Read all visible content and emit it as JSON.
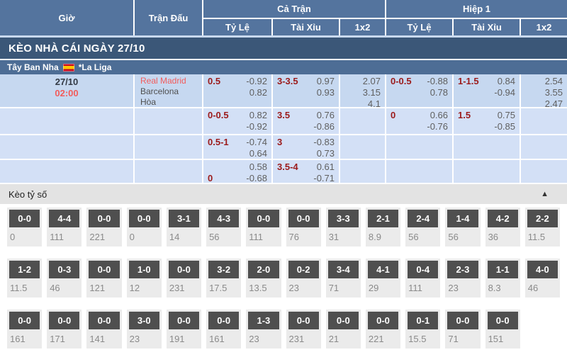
{
  "header": {
    "time": "Giờ",
    "match": "Trận Đấu",
    "full": "Cả Trận",
    "half": "Hiệp 1",
    "odds": "Tỷ Lệ",
    "ou": "Tài Xỉu",
    "oneXtwo": "1x2"
  },
  "banner": {
    "title": "KÈO NHÀ CÁI NGÀY 27/10"
  },
  "league": {
    "country": "Tây Ban Nha",
    "name": "*La Liga",
    "flag": "spain-flag"
  },
  "match": {
    "date": "27/10",
    "time": "02:00",
    "home": "Real Madrid",
    "away": "Barcelona",
    "draw": "Hòa"
  },
  "odds": {
    "r1": {
      "ft_hdp": {
        "label": "0.5",
        "v1": "-0.92",
        "v2": "0.82"
      },
      "ft_ou": {
        "label": "3-3.5",
        "v1": "0.97",
        "v2": "0.93"
      },
      "ft_1x2": {
        "v1": "2.07",
        "v2": "3.15",
        "v3": "4.1"
      },
      "h1_hdp": {
        "label": "0-0.5",
        "v1": "-0.88",
        "v2": "0.78"
      },
      "h1_ou": {
        "label": "1-1.5",
        "v1": "0.84",
        "v2": "-0.94"
      },
      "h1_1x2": {
        "v1": "2.54",
        "v2": "3.55",
        "v3": "2.47"
      }
    },
    "r2": {
      "ft_hdp": {
        "label": "0-0.5",
        "v1": "0.82",
        "v2": "-0.92"
      },
      "ft_ou": {
        "label": "3.5",
        "v1": "0.76",
        "v2": "-0.86"
      },
      "h1_hdp": {
        "label": "0",
        "v1": "0.66",
        "v2": "-0.76"
      },
      "h1_ou": {
        "label": "1.5",
        "v1": "0.75",
        "v2": "-0.85"
      }
    },
    "r3": {
      "ft_hdp": {
        "label": "0.5-1",
        "v1": "-0.74",
        "v2": "0.64"
      },
      "ft_ou": {
        "label": "3",
        "v1": "-0.83",
        "v2": "0.73"
      }
    },
    "r4": {
      "ft_hdp": {
        "label2": "0",
        "v1": "0.58",
        "v2": "-0.68"
      },
      "ft_ou": {
        "label": "3.5-4",
        "v1": "0.61",
        "v2": "-0.71"
      }
    }
  },
  "score_section": {
    "title": "Kèo tỷ số",
    "collapse": "▲"
  },
  "scores": {
    "r1": [
      {
        "s": "0-0",
        "v": "0"
      },
      {
        "s": "4-4",
        "v": "111"
      },
      {
        "s": "0-0",
        "v": "221"
      },
      {
        "s": "0-0",
        "v": "0"
      },
      {
        "s": "3-1",
        "v": "14"
      },
      {
        "s": "4-3",
        "v": "56"
      },
      {
        "s": "0-0",
        "v": "111"
      },
      {
        "s": "0-0",
        "v": "76"
      },
      {
        "s": "3-3",
        "v": "31"
      },
      {
        "s": "2-1",
        "v": "8.9"
      },
      {
        "s": "2-4",
        "v": "56"
      },
      {
        "s": "1-4",
        "v": "56"
      },
      {
        "s": "4-2",
        "v": "36"
      },
      {
        "s": "2-2",
        "v": "11.5"
      }
    ],
    "r2": [
      {
        "s": "1-2",
        "v": "11.5"
      },
      {
        "s": "0-3",
        "v": "46"
      },
      {
        "s": "0-0",
        "v": "121"
      },
      {
        "s": "1-0",
        "v": "12"
      },
      {
        "s": "0-0",
        "v": "231"
      },
      {
        "s": "3-2",
        "v": "17.5"
      },
      {
        "s": "2-0",
        "v": "13.5"
      },
      {
        "s": "0-2",
        "v": "23"
      },
      {
        "s": "3-4",
        "v": "71"
      },
      {
        "s": "4-1",
        "v": "29"
      },
      {
        "s": "0-4",
        "v": "111"
      },
      {
        "s": "2-3",
        "v": "23"
      },
      {
        "s": "1-1",
        "v": "8.3"
      },
      {
        "s": "4-0",
        "v": "46"
      }
    ],
    "r3": [
      {
        "s": "0-0",
        "v": "161"
      },
      {
        "s": "0-0",
        "v": "171"
      },
      {
        "s": "0-0",
        "v": "141"
      },
      {
        "s": "3-0",
        "v": "23"
      },
      {
        "s": "0-0",
        "v": "191"
      },
      {
        "s": "0-0",
        "v": "161"
      },
      {
        "s": "1-3",
        "v": "23"
      },
      {
        "s": "0-0",
        "v": "231"
      },
      {
        "s": "0-0",
        "v": "21"
      },
      {
        "s": "0-0",
        "v": "221"
      },
      {
        "s": "0-1",
        "v": "15.5"
      },
      {
        "s": "0-0",
        "v": "71"
      },
      {
        "s": "0-0",
        "v": "151"
      }
    ]
  },
  "colors": {
    "header_bg": "#54749e",
    "banner_bg": "#3b5778",
    "league_bg": "#4d6d95",
    "row_dark": "#c6d8f0",
    "row_light": "#d3e0f6",
    "handicap_red": "#9b1a1a",
    "team_red": "#f25c5c",
    "score_box_gray": "#4f4f4f"
  }
}
